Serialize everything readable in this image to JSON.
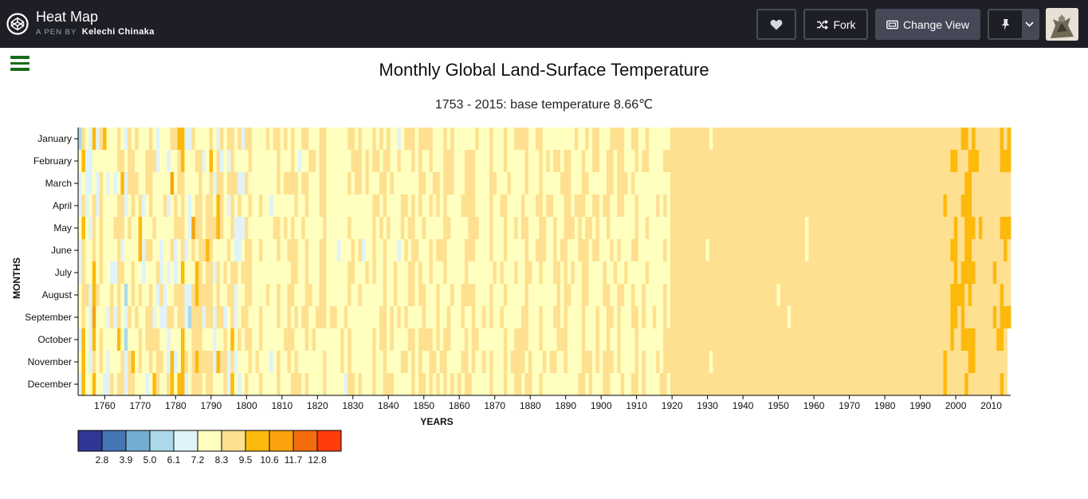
{
  "topbar": {
    "pen_title": "Heat Map",
    "by_label": "A PEN BY",
    "author": "Kelechi Chinaka",
    "fork_label": "Fork",
    "change_view_label": "Change View",
    "icons": [
      "codepen-logo-icon",
      "heart-icon",
      "fork-icon",
      "change-view-icon",
      "pin-icon",
      "chevron-down-icon",
      "avatar"
    ],
    "bg_color": "#1e1f26"
  },
  "chart": {
    "title": "Monthly Global Land-Surface Temperature",
    "subtitle": "1753 - 2015: base temperature 8.66℃"
  },
  "chart_data": {
    "type": "heatmap",
    "title": "Monthly Global Land-Surface Temperature",
    "subtitle": "1753 - 2015: base temperature 8.66℃",
    "xlabel": "YEARS",
    "ylabel": "MONTHS",
    "base_temperature": 8.66,
    "x_range": [
      1753,
      2015
    ],
    "x_ticks": [
      1760,
      1770,
      1780,
      1790,
      1800,
      1810,
      1820,
      1830,
      1840,
      1850,
      1860,
      1870,
      1880,
      1890,
      1900,
      1910,
      1920,
      1930,
      1940,
      1950,
      1960,
      1970,
      1980,
      1990,
      2000,
      2010
    ],
    "months": [
      "January",
      "February",
      "March",
      "April",
      "May",
      "June",
      "July",
      "August",
      "September",
      "October",
      "November",
      "December"
    ],
    "legend": {
      "thresholds": [
        "2.8",
        "3.9",
        "5.0",
        "6.1",
        "7.2",
        "8.3",
        "9.5",
        "10.6",
        "11.7",
        "12.8"
      ],
      "colors": [
        "#313695",
        "#4575b4",
        "#74add1",
        "#abd9e9",
        "#e0f3f8",
        "#ffffbf",
        "#fee090",
        "#fdb90c",
        "#fba20c",
        "#f46d0c",
        "#ff3c0c"
      ]
    },
    "approx_temperature_by_period": [
      {
        "from": 1753,
        "to": 1799,
        "typical": 8.0,
        "spread": 1.6
      },
      {
        "from": 1800,
        "to": 1849,
        "typical": 8.2,
        "spread": 0.7
      },
      {
        "from": 1850,
        "to": 1919,
        "typical": 8.2,
        "spread": 0.45
      },
      {
        "from": 1920,
        "to": 1996,
        "typical": 8.7,
        "spread": 0.3
      },
      {
        "from": 1997,
        "to": 2015,
        "typical": 9.4,
        "spread": 0.3
      }
    ]
  }
}
